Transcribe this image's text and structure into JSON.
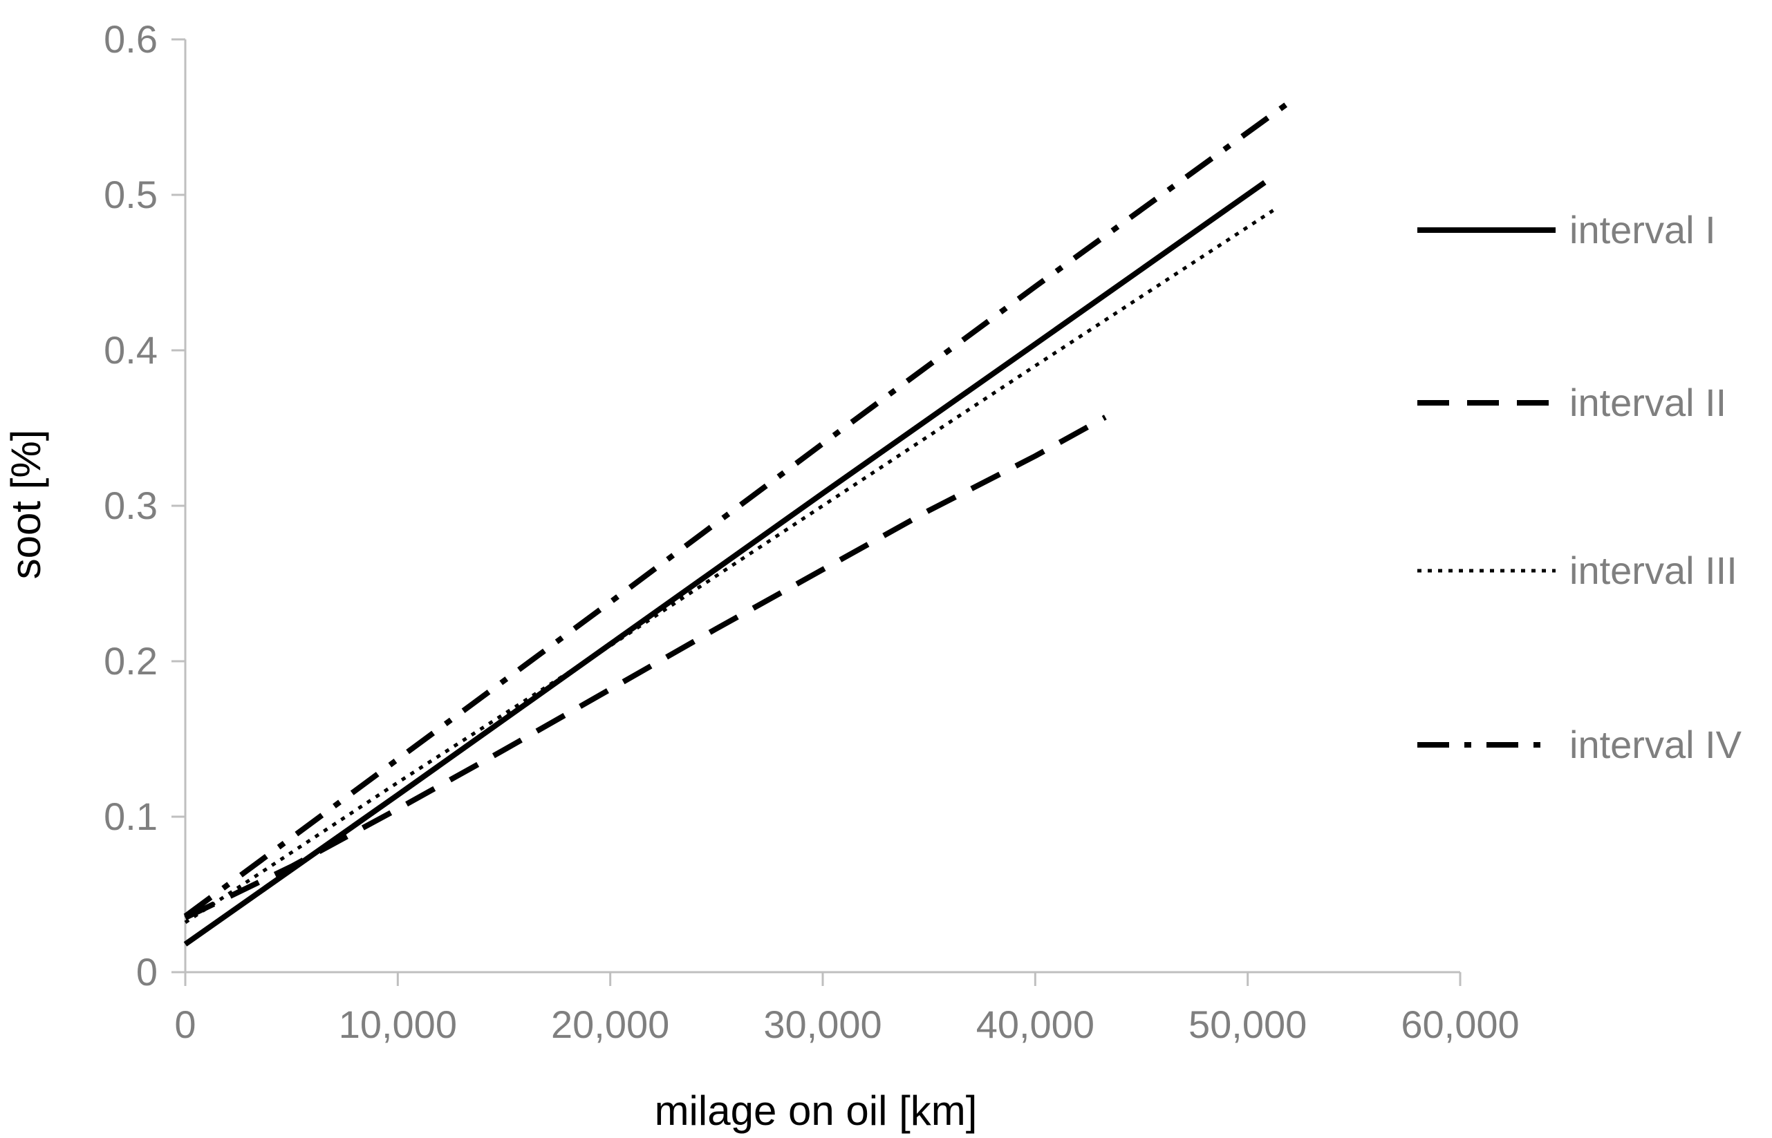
{
  "chart_data": {
    "type": "line",
    "title": "",
    "xlabel": "milage on oil [km]",
    "ylabel": "soot  [%]",
    "xlim": [
      0,
      60000
    ],
    "ylim": [
      0,
      0.6
    ],
    "x_ticks": [
      0,
      10000,
      20000,
      30000,
      40000,
      50000,
      60000
    ],
    "x_tick_labels": [
      "0",
      "10,000",
      "20,000",
      "30,000",
      "40,000",
      "50,000",
      "60,000"
    ],
    "y_ticks": [
      0,
      0.1,
      0.2,
      0.3,
      0.4,
      0.5,
      0.6
    ],
    "y_tick_labels": [
      "0",
      "0.1",
      "0.2",
      "0.3",
      "0.4",
      "0.5",
      "0.6"
    ],
    "grid": false,
    "legend_position": "right",
    "axis_color": "#bfbfbf",
    "text_color": "#7f7f7f",
    "series": [
      {
        "name": "interval I",
        "style": "solid",
        "color": "#000000",
        "x": [
          0,
          10000,
          20000,
          30000,
          40000,
          50800
        ],
        "y": [
          0.018,
          0.114,
          0.211,
          0.308,
          0.404,
          0.508
        ]
      },
      {
        "name": "interval II",
        "style": "dashed",
        "color": "#000000",
        "x": [
          0,
          5000,
          10000,
          15000,
          20000,
          25000,
          30000,
          35000,
          40000,
          43300
        ],
        "y": [
          0.035,
          0.068,
          0.105,
          0.143,
          0.182,
          0.221,
          0.259,
          0.297,
          0.332,
          0.357
        ]
      },
      {
        "name": "interval III",
        "style": "dotted",
        "color": "#000000",
        "x": [
          0,
          10000,
          20000,
          30000,
          40000,
          51200
        ],
        "y": [
          0.032,
          0.122,
          0.21,
          0.3,
          0.39,
          0.49
        ]
      },
      {
        "name": "interval IV",
        "style": "dashdot",
        "color": "#000000",
        "x": [
          0,
          10000,
          20000,
          30000,
          40000,
          51800
        ],
        "y": [
          0.036,
          0.137,
          0.238,
          0.34,
          0.441,
          0.558
        ]
      }
    ]
  }
}
